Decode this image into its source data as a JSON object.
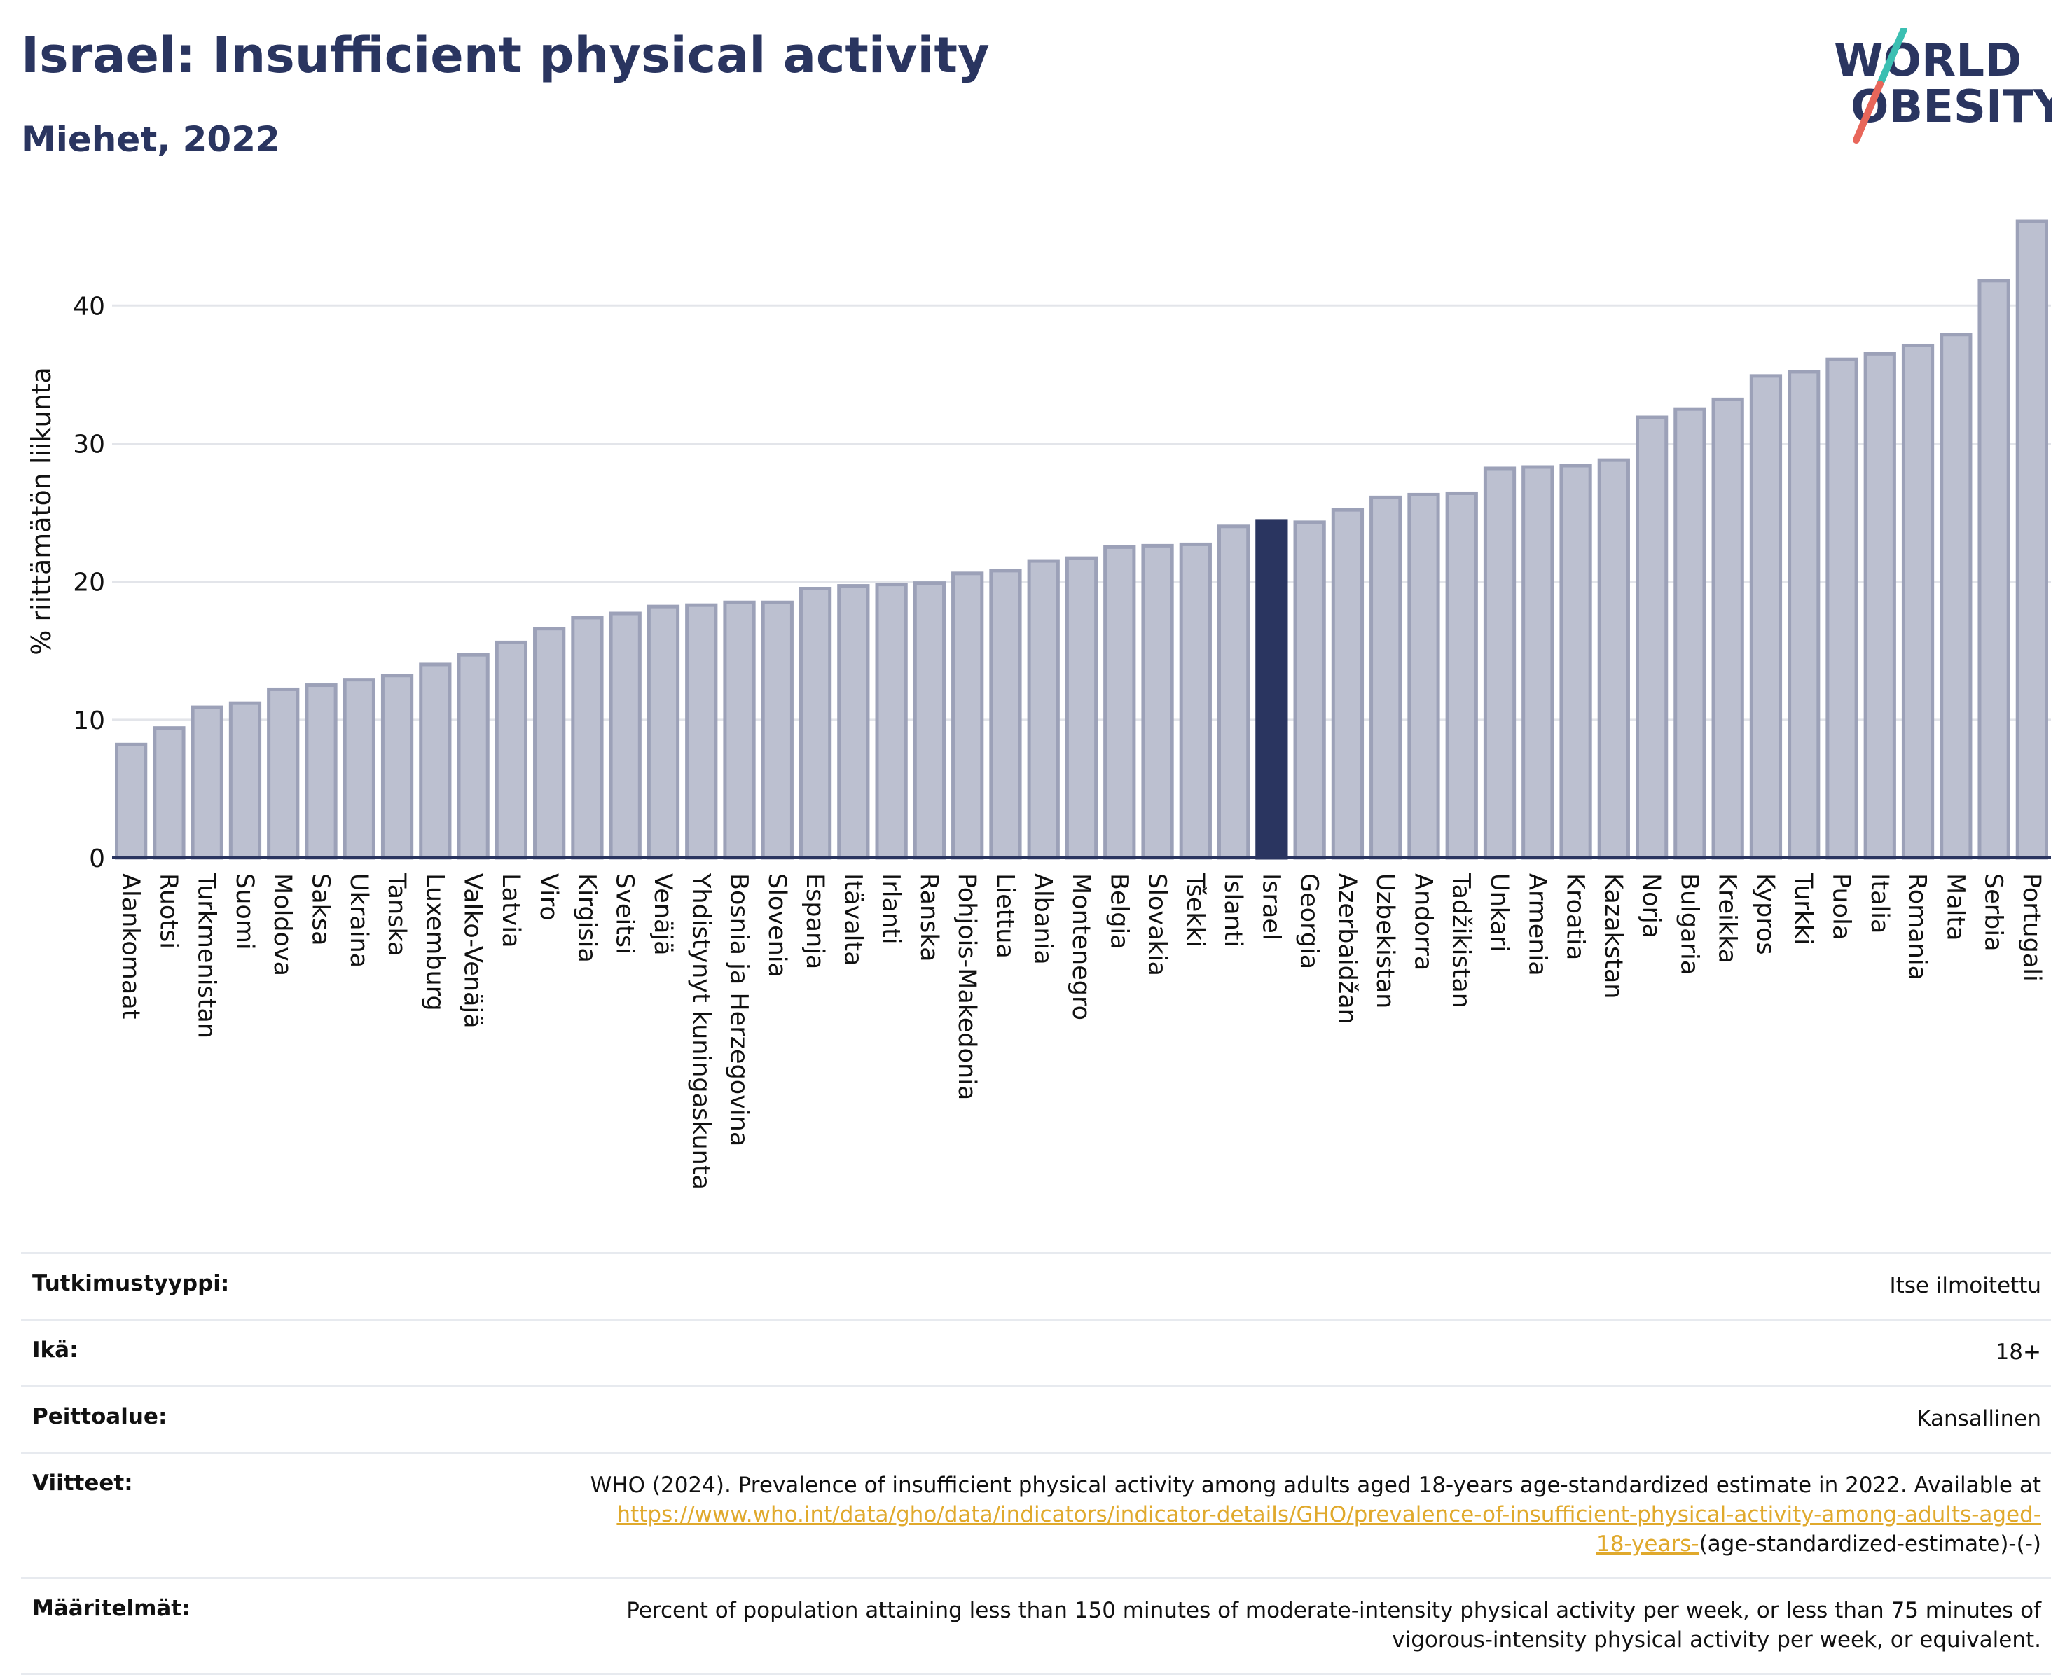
{
  "header": {
    "title": "Israel: Insufficient physical activity",
    "subtitle": "Miehet, 2022"
  },
  "logo": {
    "line1": "WORLD",
    "line2": "OBESITY",
    "icon": "world-obesity-logo"
  },
  "colors": {
    "bar": "#bcc0d0",
    "bar_stroke": "#9ca1b8",
    "highlight": "#2a3560",
    "axis": "#2a3560",
    "grid": "#e3e5ea",
    "link": "#e0a92c",
    "logo_slash_teal": "#3bbfb2",
    "logo_slash_red": "#e8665a"
  },
  "chart_data": {
    "type": "bar",
    "title": "Israel: Insufficient physical activity",
    "subtitle": "Miehet, 2022",
    "ylabel": "% riittämätön liikunta",
    "xlabel": "",
    "ylim": [
      0,
      46
    ],
    "yticks": [
      0,
      10,
      20,
      30,
      40
    ],
    "grid": true,
    "highlight": "Israel",
    "categories": [
      "Alankomaat",
      "Ruotsi",
      "Turkmenistan",
      "Suomi",
      "Moldova",
      "Saksa",
      "Ukraina",
      "Tanska",
      "Luxemburg",
      "Valko-Venäjä",
      "Latvia",
      "Viro",
      "Kirgisia",
      "Sveitsi",
      "Venäjä",
      "Yhdistynyt kuningaskunta",
      "Bosnia ja Herzegovina",
      "Slovenia",
      "Espanja",
      "Itävalta",
      "Irlanti",
      "Ranska",
      "Pohjois-Makedonia",
      "Liettua",
      "Albania",
      "Montenegro",
      "Belgia",
      "Slovakia",
      "Tšekki",
      "Islanti",
      "Israel",
      "Georgia",
      "Azerbaidžan",
      "Uzbekistan",
      "Andorra",
      "Tadžikistan",
      "Unkari",
      "Armenia",
      "Kroatia",
      "Kazakstan",
      "Norja",
      "Bulgaria",
      "Kreikka",
      "Kypros",
      "Turkki",
      "Puola",
      "Italia",
      "Romania",
      "Malta",
      "Serbia",
      "Portugali"
    ],
    "values": [
      8.2,
      9.4,
      10.9,
      11.2,
      12.2,
      12.5,
      12.9,
      13.2,
      14.0,
      14.7,
      15.6,
      16.6,
      17.4,
      17.7,
      18.2,
      18.3,
      18.5,
      18.5,
      19.5,
      19.7,
      19.8,
      19.9,
      20.6,
      20.8,
      21.5,
      21.7,
      22.5,
      22.6,
      22.7,
      24.0,
      24.4,
      24.3,
      25.2,
      26.1,
      26.3,
      26.4,
      28.2,
      28.3,
      28.4,
      28.8,
      31.9,
      32.5,
      33.2,
      34.9,
      35.2,
      36.1,
      36.5,
      37.1,
      37.9,
      41.8,
      46.1
    ]
  },
  "info": {
    "study_type_label": "Tutkimustyyppi:",
    "study_type_value": "Itse ilmoitettu",
    "age_label": "Ikä:",
    "age_value": "18+",
    "coverage_label": "Peittoalue:",
    "coverage_value": "Kansallinen",
    "references_label": "Viitteet:",
    "references_text": "WHO (2024). Prevalence of insufficient physical activity among adults aged 18-years age-standardized estimate in 2022. Available at",
    "references_link_1": "https://www.who.int/data/gho/data/indicators/indicator-details/GHO/prevalence-of-insufficient-physical-activity-among-adults-aged-",
    "references_link_2": "18-years-",
    "references_suffix": "(age-standardized-estimate)-(-)",
    "definitions_label": "Määritelmät:",
    "definitions_line1": "Percent of population attaining less than 150 minutes of moderate-intensity physical activity per week, or less than 75 minutes of",
    "definitions_line2": "vigorous-intensity physical activity per week, or equivalent."
  }
}
